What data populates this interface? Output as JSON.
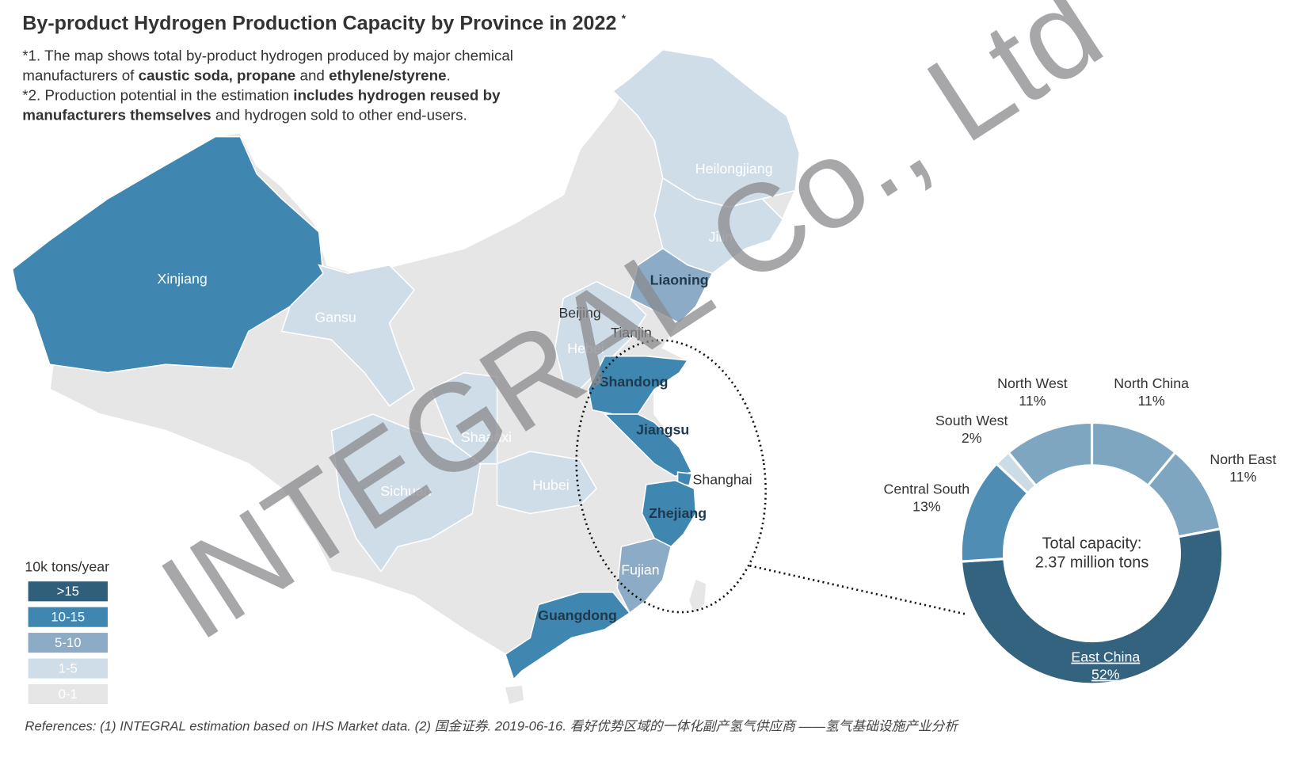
{
  "title": "By-product Hydrogen Production Capacity by Province in 2022",
  "title_mark": "*",
  "notes": [
    [
      {
        "text": "*1. The map shows total by-product hydrogen produced by major chemical",
        "bold": false
      }
    ],
    [
      {
        "text": "manufacturers of ",
        "bold": false
      },
      {
        "text": "caustic soda, propane",
        "bold": true
      },
      {
        "text": " and ",
        "bold": false
      },
      {
        "text": "ethylene/styrene",
        "bold": true
      },
      {
        "text": ".",
        "bold": false
      }
    ],
    [
      {
        "text": "*2. Production potential in the estimation ",
        "bold": false
      },
      {
        "text": "includes hydrogen reused by",
        "bold": true
      }
    ],
    [
      {
        "text": "manufacturers themselves",
        "bold": true
      },
      {
        "text": " and hydrogen sold to other end-users.",
        "bold": false
      }
    ]
  ],
  "map": {
    "legend": {
      "title": "10k tons/year",
      "items": [
        {
          "label": ">15",
          "color": "#2f5f7b"
        },
        {
          "label": "10-15",
          "color": "#3f86b0"
        },
        {
          "label": "5-10",
          "color": "#8babc6"
        },
        {
          "label": "1-5",
          "color": "#cfdde8"
        },
        {
          "label": "0-1",
          "color": "#e6e6e6"
        }
      ]
    },
    "provinces": [
      {
        "name": "Xinjiang",
        "level": 1
      },
      {
        "name": "Gansu",
        "level": 3
      },
      {
        "name": "Heilongjiang",
        "level": 3
      },
      {
        "name": "Jilin",
        "level": 3
      },
      {
        "name": "Liaoning",
        "level": 2
      },
      {
        "name": "Beijing",
        "level": 3
      },
      {
        "name": "Tianjin",
        "level": 3
      },
      {
        "name": "Hebei",
        "level": 3
      },
      {
        "name": "Shandong",
        "level": 1
      },
      {
        "name": "Jiangsu",
        "level": 1
      },
      {
        "name": "Shanghai",
        "level": 1
      },
      {
        "name": "Zhejiang",
        "level": 1
      },
      {
        "name": "Fujian",
        "level": 2
      },
      {
        "name": "Guangdong",
        "level": 1
      },
      {
        "name": "Shaanxi",
        "level": 3
      },
      {
        "name": "Sichuan",
        "level": 3
      },
      {
        "name": "Hubei",
        "level": 3
      }
    ]
  },
  "chart_data": {
    "type": "donut",
    "categories": [
      "North China",
      "North East",
      "East China",
      "Central South",
      "South West",
      "North West"
    ],
    "values": [
      11,
      11,
      52,
      13,
      2,
      11
    ],
    "value_labels": [
      "11%",
      "11%",
      "52%",
      "13%",
      "2%",
      "11%"
    ],
    "colors": [
      "#7fa6c0",
      "#7fa6c0",
      "#33637f",
      "#4f8db5",
      "#cbdce7",
      "#7fa6c0"
    ],
    "center_label": [
      "Total capacity:",
      "2.37 million tons"
    ]
  },
  "watermark": "INTEGRAL Co., Ltd",
  "references": "References: (1) INTEGRAL estimation based on IHS Market data. (2) 国金证券. 2019-06-16. 看好优势区域的一体化副产氢气供应商 ——氢气基础设施产业分析"
}
